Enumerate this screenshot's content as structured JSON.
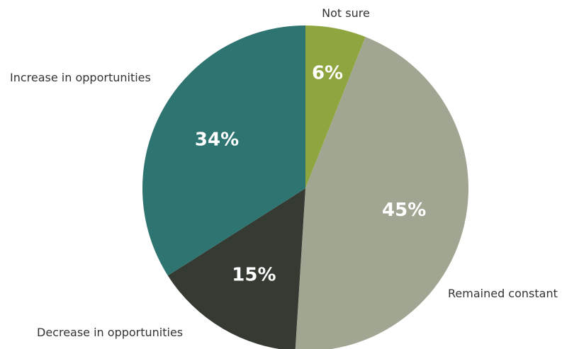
{
  "chart_data": {
    "type": "pie",
    "slices": [
      {
        "label": "Not sure",
        "value": 6,
        "value_label": "6%",
        "color": "#8fa640"
      },
      {
        "label": "Remained constant",
        "value": 45,
        "value_label": "45%",
        "color": "#a1a693"
      },
      {
        "label": "Decrease in opportunities",
        "value": 15,
        "value_label": "15%",
        "color": "#353b32"
      },
      {
        "label": "Increase in opportunities",
        "value": 34,
        "value_label": "34%",
        "color": "#2e7470"
      }
    ],
    "unit": "%",
    "start": "top",
    "direction": "clockwise"
  }
}
